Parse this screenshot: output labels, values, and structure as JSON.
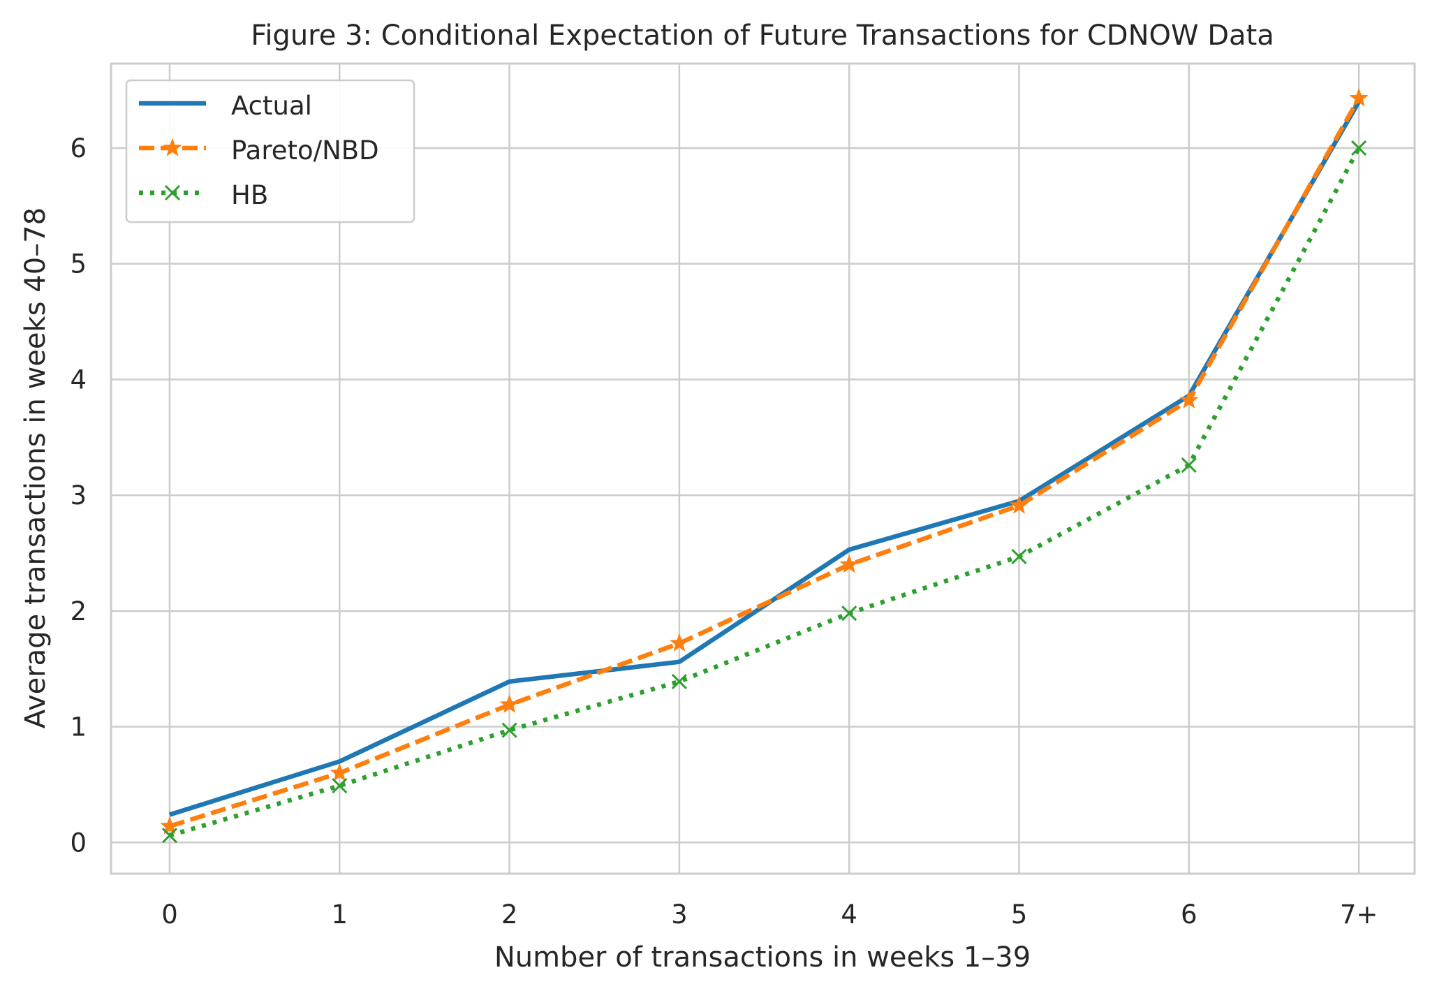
{
  "chart_data": {
    "type": "line",
    "title": "Figure 3: Conditional Expectation of Future Transactions for CDNOW Data",
    "xlabel": "Number of transactions in weeks 1–39",
    "ylabel": "Average transactions in weeks 40–78",
    "categories": [
      "0",
      "1",
      "2",
      "3",
      "4",
      "5",
      "6",
      "7+"
    ],
    "yticks": [
      "0",
      "1",
      "2",
      "3",
      "4",
      "5",
      "6"
    ],
    "ylim": [
      -0.27,
      6.73
    ],
    "grid": true,
    "legend_position": "top-left",
    "series": [
      {
        "name": "Actual",
        "values": [
          0.24,
          0.7,
          1.39,
          1.56,
          2.53,
          2.95,
          3.86,
          6.4
        ],
        "color": "#1f77b4",
        "line_style": "solid",
        "marker": "none"
      },
      {
        "name": "Pareto/NBD",
        "values": [
          0.14,
          0.6,
          1.19,
          1.72,
          2.4,
          2.91,
          3.82,
          6.43
        ],
        "color": "#ff7f0e",
        "line_style": "dashed",
        "marker": "star"
      },
      {
        "name": "HB",
        "values": [
          0.06,
          0.49,
          0.97,
          1.39,
          1.98,
          2.47,
          3.26,
          6.0
        ],
        "color": "#2ca02c",
        "line_style": "dotted",
        "marker": "x"
      }
    ]
  }
}
